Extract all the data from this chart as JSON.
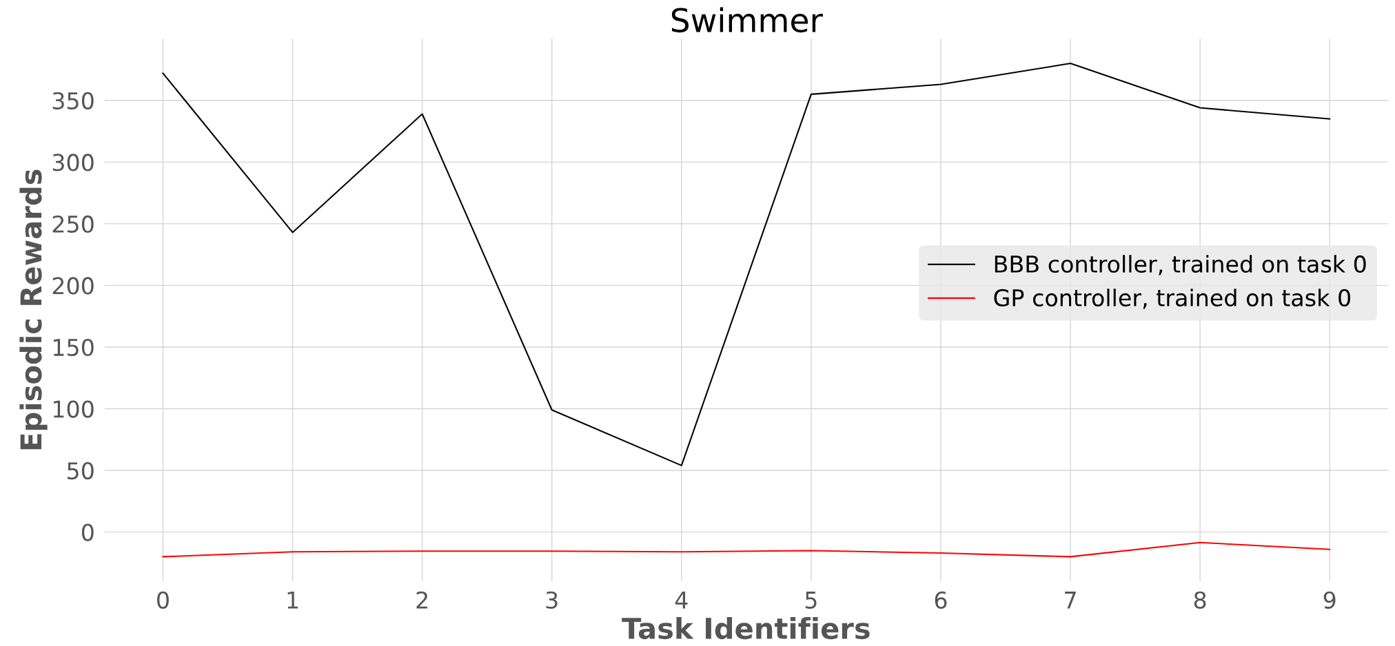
{
  "chart_data": {
    "type": "line",
    "title": "Swimmer",
    "xlabel": "Task Identifiers",
    "ylabel": "Episodic Rewards",
    "x": [
      0,
      1,
      2,
      3,
      4,
      5,
      6,
      7,
      8,
      9
    ],
    "series": [
      {
        "name": "BBB controller, trained on task 0",
        "color": "#000000",
        "values": [
          372,
          243,
          339,
          99,
          54,
          355,
          363,
          380,
          344,
          335
        ]
      },
      {
        "name": "GP controller, trained on task 0",
        "color": "#ff0000",
        "values": [
          -20,
          -16,
          -15.5,
          -15.5,
          -16,
          -15,
          -17,
          -20,
          -8.5,
          -14
        ]
      }
    ],
    "xlim": [
      -0.45,
      9.45
    ],
    "ylim": [
      -40,
      400
    ],
    "xticks": [
      0,
      1,
      2,
      3,
      4,
      5,
      6,
      7,
      8,
      9
    ],
    "yticks": [
      0,
      50,
      100,
      150,
      200,
      250,
      300,
      350
    ],
    "grid": true,
    "legend": "right",
    "marker": "none",
    "line_style": "solid"
  }
}
